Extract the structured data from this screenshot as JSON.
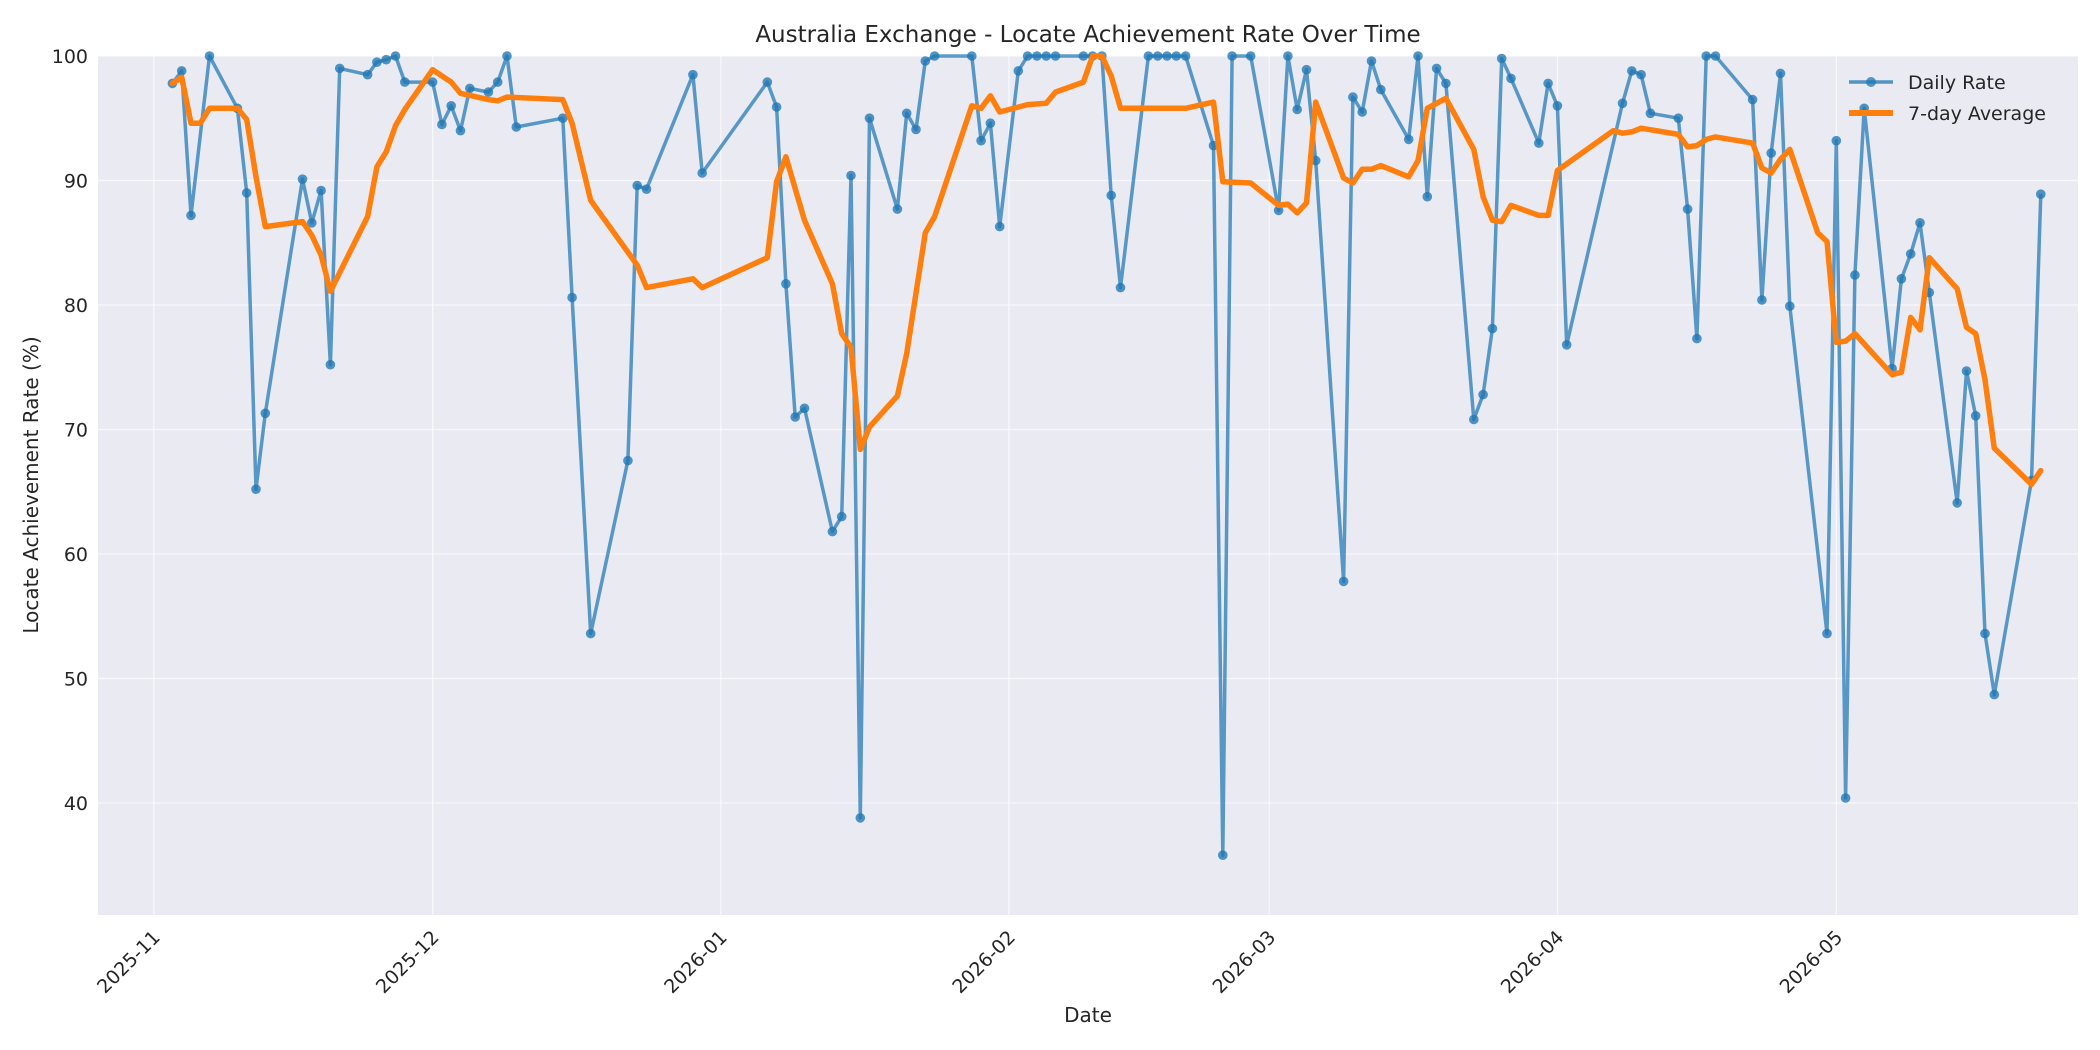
{
  "chart_data": {
    "type": "line",
    "title": "Australia Exchange - Locate Achievement Rate Over Time",
    "xlabel": "Date",
    "ylabel": "Locate Achievement Rate (%)",
    "ylim": [
      31,
      100
    ],
    "yticks": [
      40,
      50,
      60,
      70,
      80,
      90,
      100
    ],
    "xlim": [
      "2025-10-26",
      "2026-05-27"
    ],
    "xticks": [
      "2025-11-01",
      "2025-12-01",
      "2026-01-01",
      "2026-02-01",
      "2026-03-01",
      "2026-04-01",
      "2026-05-01"
    ],
    "xtick_labels": [
      "2025-11",
      "2025-12",
      "2026-01",
      "2026-02",
      "2026-03",
      "2026-04",
      "2026-05"
    ],
    "grid": true,
    "legend": "top-right",
    "colors": {
      "daily": "#1f77b4",
      "average": "#ff7f0e",
      "background": "#eaeaf2"
    },
    "series": [
      {
        "name": "Daily Rate",
        "style": "line-marker",
        "points": [
          [
            "2025-11-03",
            97.8
          ],
          [
            "2025-11-04",
            98.8
          ],
          [
            "2025-11-05",
            87.2
          ],
          [
            "2025-11-07",
            100.0
          ],
          [
            "2025-11-10",
            95.8
          ],
          [
            "2025-11-11",
            89.0
          ],
          [
            "2025-11-12",
            65.2
          ],
          [
            "2025-11-13",
            71.3
          ],
          [
            "2025-11-17",
            90.1
          ],
          [
            "2025-11-18",
            86.6
          ],
          [
            "2025-11-19",
            89.2
          ],
          [
            "2025-11-20",
            75.2
          ],
          [
            "2025-11-21",
            99.0
          ],
          [
            "2025-11-24",
            98.5
          ],
          [
            "2025-11-25",
            99.5
          ],
          [
            "2025-11-26",
            99.7
          ],
          [
            "2025-11-27",
            100.0
          ],
          [
            "2025-11-28",
            97.9
          ],
          [
            "2025-12-01",
            97.9
          ],
          [
            "2025-12-02",
            94.5
          ],
          [
            "2025-12-03",
            96.0
          ],
          [
            "2025-12-04",
            94.0
          ],
          [
            "2025-12-05",
            97.4
          ],
          [
            "2025-12-07",
            97.1
          ],
          [
            "2025-12-08",
            97.9
          ],
          [
            "2025-12-09",
            100.0
          ],
          [
            "2025-12-10",
            94.3
          ],
          [
            "2025-12-15",
            95.0
          ],
          [
            "2025-12-16",
            80.6
          ],
          [
            "2025-12-18",
            53.6
          ],
          [
            "2025-12-22",
            67.5
          ],
          [
            "2025-12-23",
            89.6
          ],
          [
            "2025-12-24",
            89.3
          ],
          [
            "2025-12-29",
            98.5
          ],
          [
            "2025-12-30",
            90.6
          ],
          [
            "2026-01-06",
            97.9
          ],
          [
            "2026-01-07",
            95.9
          ],
          [
            "2026-01-08",
            81.7
          ],
          [
            "2026-01-09",
            71.0
          ],
          [
            "2026-01-10",
            71.7
          ],
          [
            "2026-01-13",
            61.8
          ],
          [
            "2026-01-14",
            63.0
          ],
          [
            "2026-01-15",
            90.4
          ],
          [
            "2026-01-16",
            38.8
          ],
          [
            "2026-01-17",
            95.0
          ],
          [
            "2026-01-20",
            87.7
          ],
          [
            "2026-01-21",
            95.4
          ],
          [
            "2026-01-22",
            94.1
          ],
          [
            "2026-01-23",
            99.6
          ],
          [
            "2026-01-24",
            100.0
          ],
          [
            "2026-01-28",
            100.0
          ],
          [
            "2026-01-29",
            93.2
          ],
          [
            "2026-01-30",
            94.6
          ],
          [
            "2026-01-31",
            86.3
          ],
          [
            "2026-02-02",
            98.8
          ],
          [
            "2026-02-03",
            100.0
          ],
          [
            "2026-02-04",
            100.0
          ],
          [
            "2026-02-05",
            100.0
          ],
          [
            "2026-02-06",
            100.0
          ],
          [
            "2026-02-09",
            100.0
          ],
          [
            "2026-02-10",
            100.0
          ],
          [
            "2026-02-11",
            100.0
          ],
          [
            "2026-02-12",
            88.8
          ],
          [
            "2026-02-13",
            81.4
          ],
          [
            "2026-02-16",
            100.0
          ],
          [
            "2026-02-17",
            100.0
          ],
          [
            "2026-02-18",
            100.0
          ],
          [
            "2026-02-19",
            100.0
          ],
          [
            "2026-02-20",
            100.0
          ],
          [
            "2026-02-23",
            92.8
          ],
          [
            "2026-02-24",
            35.8
          ],
          [
            "2026-02-25",
            100.0
          ],
          [
            "2026-02-27",
            100.0
          ],
          [
            "2026-03-02",
            87.6
          ],
          [
            "2026-03-03",
            100.0
          ],
          [
            "2026-03-04",
            95.7
          ],
          [
            "2026-03-05",
            98.9
          ],
          [
            "2026-03-06",
            91.6
          ],
          [
            "2026-03-09",
            57.8
          ],
          [
            "2026-03-10",
            96.7
          ],
          [
            "2026-03-11",
            95.5
          ],
          [
            "2026-03-12",
            99.6
          ],
          [
            "2026-03-13",
            97.3
          ],
          [
            "2026-03-16",
            93.3
          ],
          [
            "2026-03-17",
            100.0
          ],
          [
            "2026-03-18",
            88.7
          ],
          [
            "2026-03-19",
            99.0
          ],
          [
            "2026-03-20",
            97.8
          ],
          [
            "2026-03-23",
            70.8
          ],
          [
            "2026-03-24",
            72.8
          ],
          [
            "2026-03-25",
            78.1
          ],
          [
            "2026-03-26",
            99.8
          ],
          [
            "2026-03-27",
            98.2
          ],
          [
            "2026-03-30",
            93.0
          ],
          [
            "2026-03-31",
            97.8
          ],
          [
            "2026-04-01",
            96.0
          ],
          [
            "2026-04-02",
            76.8
          ],
          [
            "2026-04-08",
            96.2
          ],
          [
            "2026-04-09",
            98.8
          ],
          [
            "2026-04-10",
            98.5
          ],
          [
            "2026-04-11",
            95.4
          ],
          [
            "2026-04-14",
            95.0
          ],
          [
            "2026-04-15",
            87.7
          ],
          [
            "2026-04-16",
            77.3
          ],
          [
            "2026-04-17",
            100.0
          ],
          [
            "2026-04-18",
            100.0
          ],
          [
            "2026-04-22",
            96.5
          ],
          [
            "2026-04-23",
            80.4
          ],
          [
            "2026-04-24",
            92.2
          ],
          [
            "2026-04-25",
            98.6
          ],
          [
            "2026-04-26",
            79.9
          ],
          [
            "2026-04-30",
            53.6
          ],
          [
            "2026-05-01",
            93.2
          ],
          [
            "2026-05-02",
            40.4
          ],
          [
            "2026-05-03",
            82.4
          ],
          [
            "2026-05-04",
            95.8
          ],
          [
            "2026-05-07",
            74.9
          ],
          [
            "2026-05-08",
            82.1
          ],
          [
            "2026-05-09",
            84.1
          ],
          [
            "2026-05-10",
            86.6
          ],
          [
            "2026-05-11",
            81.0
          ],
          [
            "2026-05-14",
            64.1
          ],
          [
            "2026-05-15",
            74.7
          ],
          [
            "2026-05-16",
            71.1
          ],
          [
            "2026-05-17",
            53.6
          ],
          [
            "2026-05-18",
            48.7
          ],
          [
            "2026-05-22",
            65.9
          ],
          [
            "2026-05-23",
            88.9
          ]
        ]
      },
      {
        "name": "7-day Average",
        "style": "line",
        "points": [
          [
            "2025-11-03",
            97.8
          ],
          [
            "2025-11-04",
            98.3
          ],
          [
            "2025-11-05",
            94.6
          ],
          [
            "2025-11-06",
            94.6
          ],
          [
            "2025-11-07",
            95.8
          ],
          [
            "2025-11-10",
            95.8
          ],
          [
            "2025-11-11",
            94.9
          ],
          [
            "2025-11-12",
            90.3
          ],
          [
            "2025-11-13",
            86.3
          ],
          [
            "2025-11-17",
            86.7
          ],
          [
            "2025-11-18",
            85.6
          ],
          [
            "2025-11-19",
            84.0
          ],
          [
            "2025-11-20",
            81.1
          ],
          [
            "2025-11-24",
            87.1
          ],
          [
            "2025-11-25",
            91.1
          ],
          [
            "2025-11-26",
            92.3
          ],
          [
            "2025-11-27",
            94.4
          ],
          [
            "2025-11-28",
            95.7
          ],
          [
            "2025-12-01",
            98.9
          ],
          [
            "2025-12-02",
            98.4
          ],
          [
            "2025-12-03",
            97.9
          ],
          [
            "2025-12-04",
            97.0
          ],
          [
            "2025-12-07",
            96.5
          ],
          [
            "2025-12-08",
            96.4
          ],
          [
            "2025-12-09",
            96.7
          ],
          [
            "2025-12-15",
            96.5
          ],
          [
            "2025-12-16",
            94.6
          ],
          [
            "2025-12-18",
            88.4
          ],
          [
            "2025-12-23",
            83.2
          ],
          [
            "2025-12-24",
            81.4
          ],
          [
            "2025-12-29",
            82.1
          ],
          [
            "2025-12-30",
            81.4
          ],
          [
            "2026-01-06",
            83.8
          ],
          [
            "2026-01-07",
            89.9
          ],
          [
            "2026-01-08",
            91.9
          ],
          [
            "2026-01-10",
            86.8
          ],
          [
            "2026-01-13",
            81.7
          ],
          [
            "2026-01-14",
            77.7
          ],
          [
            "2026-01-15",
            76.6
          ],
          [
            "2026-01-16",
            68.4
          ],
          [
            "2026-01-17",
            70.2
          ],
          [
            "2026-01-20",
            72.7
          ],
          [
            "2026-01-21",
            76.1
          ],
          [
            "2026-01-23",
            85.8
          ],
          [
            "2026-01-24",
            87.1
          ],
          [
            "2026-01-28",
            96.0
          ],
          [
            "2026-01-29",
            95.8
          ],
          [
            "2026-01-30",
            96.8
          ],
          [
            "2026-01-31",
            95.5
          ],
          [
            "2026-02-03",
            96.1
          ],
          [
            "2026-02-05",
            96.2
          ],
          [
            "2026-02-06",
            97.1
          ],
          [
            "2026-02-09",
            97.9
          ],
          [
            "2026-02-10",
            100.0
          ],
          [
            "2026-02-11",
            100.0
          ],
          [
            "2026-02-12",
            98.4
          ],
          [
            "2026-02-13",
            95.8
          ],
          [
            "2026-02-20",
            95.8
          ],
          [
            "2026-02-23",
            96.3
          ],
          [
            "2026-02-24",
            89.9
          ],
          [
            "2026-02-27",
            89.8
          ],
          [
            "2026-03-02",
            88.0
          ],
          [
            "2026-03-03",
            88.1
          ],
          [
            "2026-03-04",
            87.4
          ],
          [
            "2026-03-05",
            88.2
          ],
          [
            "2026-03-06",
            96.3
          ],
          [
            "2026-03-09",
            90.2
          ],
          [
            "2026-03-10",
            89.8
          ],
          [
            "2026-03-11",
            90.9
          ],
          [
            "2026-03-12",
            90.9
          ],
          [
            "2026-03-13",
            91.2
          ],
          [
            "2026-03-16",
            90.3
          ],
          [
            "2026-03-17",
            91.6
          ],
          [
            "2026-03-18",
            95.8
          ],
          [
            "2026-03-20",
            96.6
          ],
          [
            "2026-03-23",
            92.5
          ],
          [
            "2026-03-24",
            88.7
          ],
          [
            "2026-03-25",
            86.8
          ],
          [
            "2026-03-26",
            86.7
          ],
          [
            "2026-03-27",
            88.0
          ],
          [
            "2026-03-30",
            87.2
          ],
          [
            "2026-03-31",
            87.2
          ],
          [
            "2026-04-01",
            90.8
          ],
          [
            "2026-04-07",
            94.0
          ],
          [
            "2026-04-08",
            93.8
          ],
          [
            "2026-04-09",
            93.9
          ],
          [
            "2026-04-10",
            94.2
          ],
          [
            "2026-04-14",
            93.7
          ],
          [
            "2026-04-15",
            92.7
          ],
          [
            "2026-04-16",
            92.8
          ],
          [
            "2026-04-17",
            93.3
          ],
          [
            "2026-04-18",
            93.5
          ],
          [
            "2026-04-22",
            93.0
          ],
          [
            "2026-04-23",
            91.0
          ],
          [
            "2026-04-24",
            90.6
          ],
          [
            "2026-04-25",
            91.7
          ],
          [
            "2026-04-26",
            92.5
          ],
          [
            "2026-04-29",
            85.8
          ],
          [
            "2026-04-30",
            85.1
          ],
          [
            "2026-05-01",
            77.0
          ],
          [
            "2026-05-02",
            77.1
          ],
          [
            "2026-05-03",
            77.7
          ],
          [
            "2026-05-07",
            74.4
          ],
          [
            "2026-05-08",
            74.6
          ],
          [
            "2026-05-09",
            79.0
          ],
          [
            "2026-05-10",
            78.0
          ],
          [
            "2026-05-11",
            83.8
          ],
          [
            "2026-05-14",
            81.3
          ],
          [
            "2026-05-15",
            78.2
          ],
          [
            "2026-05-16",
            77.7
          ],
          [
            "2026-05-17",
            74.0
          ],
          [
            "2026-05-18",
            68.5
          ],
          [
            "2026-05-22",
            65.6
          ],
          [
            "2026-05-23",
            66.7
          ]
        ]
      }
    ]
  }
}
